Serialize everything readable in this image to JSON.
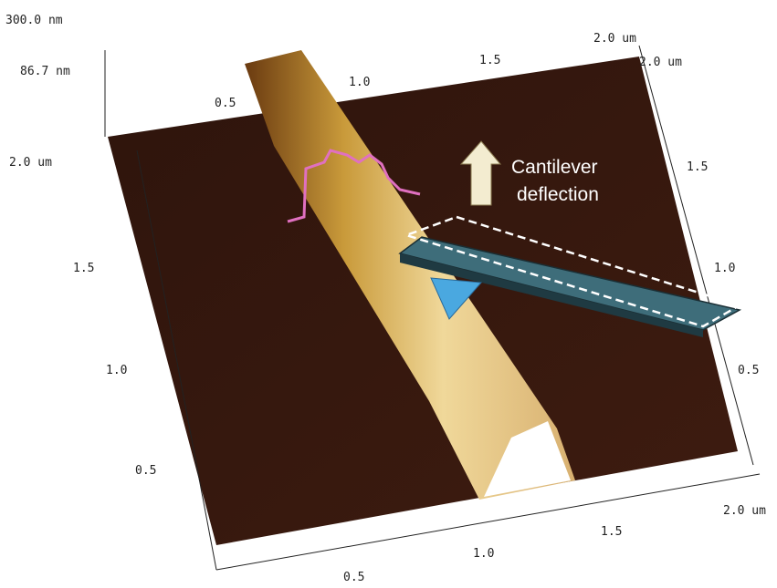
{
  "z_axis": {
    "max": "300.0 nm",
    "value": "86.7 nm"
  },
  "left_axis": [
    "0.5",
    "1.0",
    "1.5",
    "2.0 um"
  ],
  "bottom_axis": [
    "0.5",
    "1.0",
    "1.5",
    "2.0 um"
  ],
  "top_axis": [
    "0.5",
    "1.0",
    "1.5",
    "2.0 um"
  ],
  "right_axis": [
    "0.5",
    "1.0",
    "1.5",
    "2.0 um"
  ],
  "annotation": [
    "Cantilever",
    "deflection"
  ]
}
